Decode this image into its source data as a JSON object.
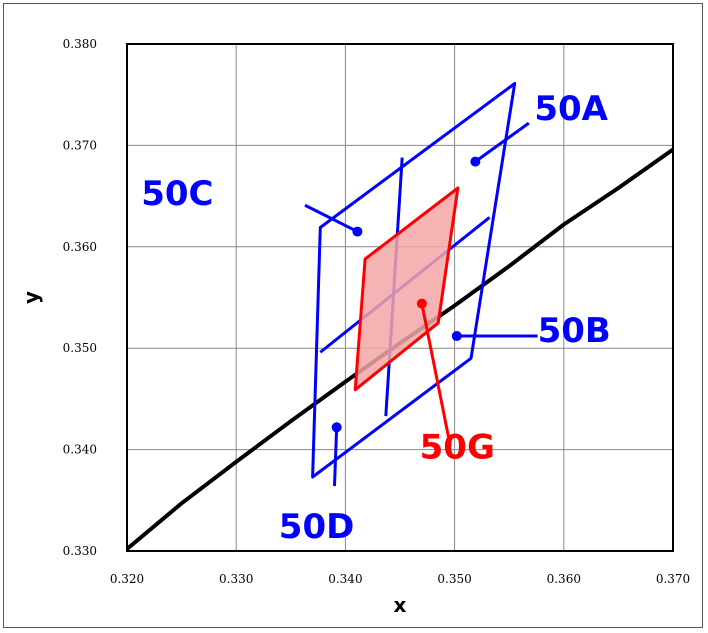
{
  "chart_data": {
    "type": "line",
    "xlabel": "x",
    "ylabel": "y",
    "xlim": [
      0.32,
      0.37
    ],
    "ylim": [
      0.33,
      0.38
    ],
    "x_ticks": [
      0.32,
      0.33,
      0.34,
      0.35,
      0.36,
      0.37
    ],
    "y_ticks": [
      0.33,
      0.34,
      0.35,
      0.36,
      0.37,
      0.38
    ],
    "x_tick_labels": [
      "0.320",
      "0.330",
      "0.340",
      "0.350",
      "0.360",
      "0.370"
    ],
    "y_tick_labels": [
      "0.330",
      "0.340",
      "0.350",
      "0.360",
      "0.370",
      "0.380"
    ],
    "grid": true,
    "colors": {
      "curve": "#000000",
      "blue": "#0000ff",
      "red": "#ff0000",
      "red_fill": "#f4a6a6"
    },
    "curve": {
      "x": [
        0.32,
        0.325,
        0.33,
        0.335,
        0.34,
        0.345,
        0.35,
        0.355,
        0.36,
        0.365,
        0.37
      ],
      "y": [
        0.3302,
        0.3347,
        0.3388,
        0.3428,
        0.3467,
        0.3505,
        0.3542,
        0.3581,
        0.3622,
        0.3658,
        0.3696
      ]
    },
    "blue_quadrangle": {
      "outline": [
        [
          0.3377,
          0.3619
        ],
        [
          0.3555,
          0.3761
        ],
        [
          0.3515,
          0.349
        ],
        [
          0.337,
          0.3373
        ]
      ],
      "lines": [
        [
          [
            0.3377,
            0.3496
          ],
          [
            0.3532,
            0.3629
          ]
        ],
        [
          [
            0.3452,
            0.3688
          ],
          [
            0.3437,
            0.3433
          ]
        ]
      ]
    },
    "red_quadrangle": {
      "outline": [
        [
          0.3418,
          0.3588
        ],
        [
          0.3503,
          0.3658
        ],
        [
          0.3485,
          0.3525
        ],
        [
          0.3409,
          0.3459
        ]
      ]
    },
    "callouts": [
      {
        "label": "50A",
        "color": "#0000ff",
        "text_at": [
          0.3573,
          0.3725
        ],
        "point": [
          0.3519,
          0.3684
        ],
        "from": [
          0.3568,
          0.3722
        ]
      },
      {
        "label": "50B",
        "color": "#0000ff",
        "text_at": [
          0.3576,
          0.3506
        ],
        "point": [
          0.3502,
          0.3512
        ],
        "from": [
          0.3576,
          0.3512
        ]
      },
      {
        "label": "50C",
        "color": "#0000ff",
        "text_at": [
          0.3213,
          0.3641
        ],
        "point": [
          0.3411,
          0.3615
        ],
        "from": [
          0.3363,
          0.3641
        ]
      },
      {
        "label": "50D",
        "color": "#0000ff",
        "text_at": [
          0.3339,
          0.3313
        ],
        "point": [
          0.3392,
          0.3422
        ],
        "from": [
          0.339,
          0.3364
        ]
      },
      {
        "label": "50G",
        "color": "#ff0000",
        "text_at": [
          0.3468,
          0.3391
        ],
        "point": [
          0.347,
          0.3544
        ],
        "from": [
          0.3496,
          0.3404
        ]
      }
    ]
  }
}
